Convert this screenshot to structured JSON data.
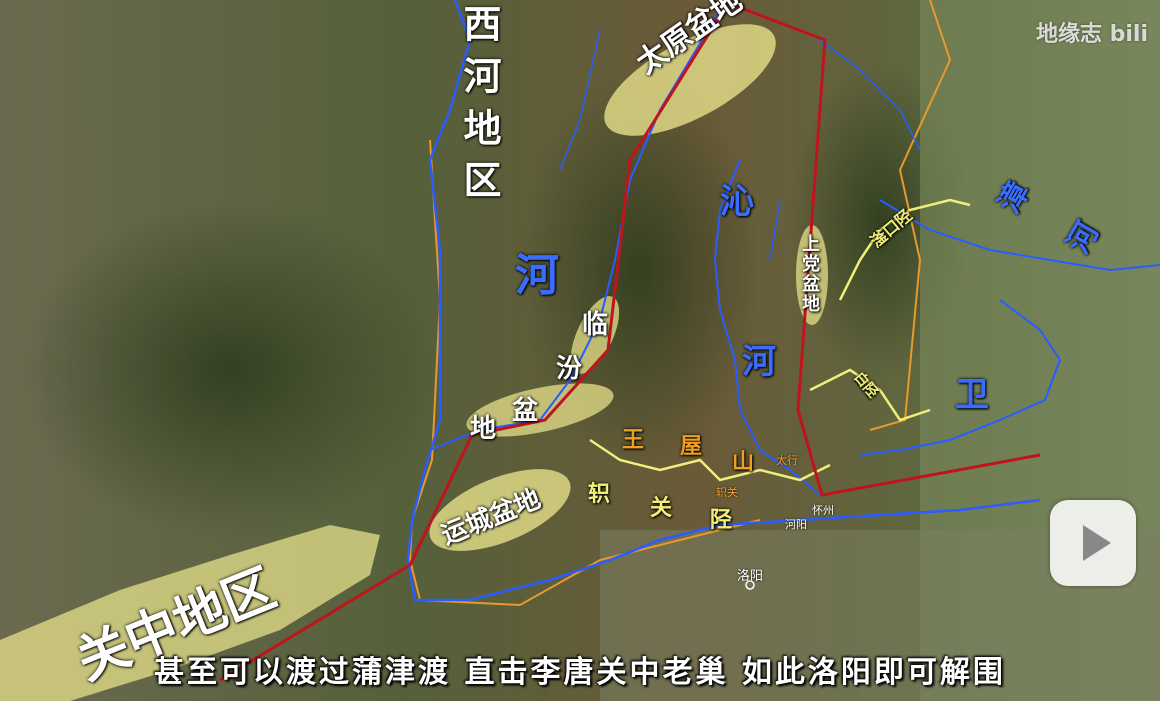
{
  "labels": {
    "xihe_region": "西河地区",
    "river_he": "河",
    "taiyuan_basin": "太原盆地",
    "linfen_basin_1": "临",
    "linfen_basin_2": "汾",
    "linfen_basin_3": "盆",
    "linfen_basin_4": "地",
    "yuncheng_basin": "运城盆地",
    "guanzhong": "关中地区",
    "qin_river_1": "沁",
    "qin_river_2": "河",
    "shangdang_basin": "上党盆地",
    "wangwu_mountain_1": "王",
    "wangwu_mountain_2": "屋",
    "wangwu_mountain_3": "山",
    "zhi_pass_1": "轵",
    "zhi_pass_2": "关",
    "zhi_pass_3": "陉",
    "zhang_river": "漳河",
    "wei_river": "卫",
    "fukou_pass": "滏口陉",
    "baixing_pass": "白陉",
    "luoyang": "洛阳",
    "heyang": "河阳",
    "taihang_small": "太行",
    "zhiguan_small": "轵关",
    "huaizhou": "怀州"
  },
  "watermark": "地缘志 bili",
  "subtitle": "甚至可以渡过蒲津渡 直击李唐关中老巢 如此洛阳即可解围",
  "colors": {
    "route": "#c0141c",
    "river": "#2a5cff",
    "basin": "#e6e08a",
    "pass": "#f2ee7a",
    "province": "#e89a2a",
    "mountain_label": "#f0a020"
  }
}
